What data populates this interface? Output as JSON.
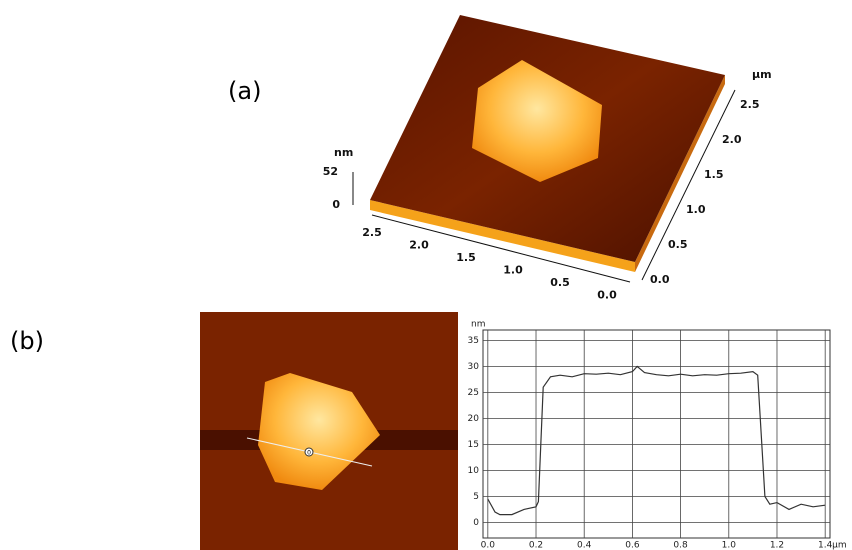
{
  "figure": {
    "panel_a": {
      "label": "(a)",
      "z_unit": "nm",
      "z_ticks": [
        "52",
        "0"
      ],
      "x_unit": "µm",
      "front_ticks": [
        "2.5",
        "2.0",
        "1.5",
        "1.0",
        "0.5",
        "0.0"
      ],
      "side_ticks": [
        "0.0",
        "0.5",
        "1.0",
        "1.5",
        "2.0",
        "2.5"
      ]
    },
    "panel_b": {
      "label": "(b)",
      "marker": "0"
    }
  },
  "chart_data": {
    "type": "line",
    "xlabel": "µm",
    "ylabel": "nm",
    "x": [
      0.0,
      0.03,
      0.05,
      0.1,
      0.15,
      0.2,
      0.21,
      0.23,
      0.26,
      0.3,
      0.35,
      0.4,
      0.45,
      0.5,
      0.55,
      0.6,
      0.62,
      0.65,
      0.7,
      0.75,
      0.8,
      0.85,
      0.9,
      0.95,
      1.0,
      1.05,
      1.1,
      1.12,
      1.15,
      1.17,
      1.2,
      1.25,
      1.3,
      1.35,
      1.4
    ],
    "values": [
      4.5,
      2,
      1.5,
      1.5,
      2.5,
      3,
      4,
      26,
      28,
      28.3,
      28,
      28.6,
      28.5,
      28.7,
      28.4,
      29,
      30,
      28.8,
      28.4,
      28.2,
      28.5,
      28.2,
      28.4,
      28.3,
      28.6,
      28.7,
      29,
      28.3,
      5,
      3.5,
      3.8,
      2.5,
      3.5,
      3,
      3.3
    ],
    "color": "#333333",
    "xlim": [
      -0.02,
      1.42
    ],
    "ylim": [
      -3,
      37
    ],
    "xticks": [
      {
        "value": 0,
        "label": "0.0"
      },
      {
        "value": 0.2,
        "label": "0.2"
      },
      {
        "value": 0.4,
        "label": "0.4"
      },
      {
        "value": 0.6,
        "label": "0.6"
      },
      {
        "value": 0.8,
        "label": "0.8"
      },
      {
        "value": 1,
        "label": "1.0"
      },
      {
        "value": 1.2,
        "label": "1.2"
      },
      {
        "value": 1.4,
        "label": "1.4"
      }
    ],
    "yticks": [
      0,
      5,
      10,
      15,
      20,
      25,
      30,
      35
    ],
    "grid": true
  }
}
